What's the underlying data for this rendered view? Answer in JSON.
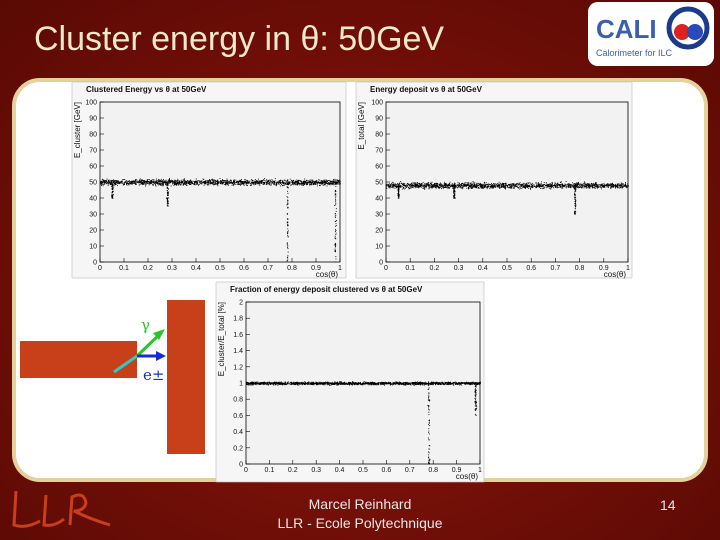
{
  "slide": {
    "title": "Cluster energy in θ: 50GeV",
    "author_line1": "Marcel Reinhard",
    "author_line2": "LLR - Ecole Polytechnique",
    "page_number": "14"
  },
  "logo": {
    "wordmark": "CALICE",
    "tagline": "Calorimeter for ILC",
    "org_logo": "LLR"
  },
  "diagram": {
    "gamma_label": "γ",
    "electron_label": "e±"
  },
  "colors": {
    "background": "#7a1209",
    "title_text": "#f1e9c9",
    "block": "#c8401a",
    "gamma_arrow": "#28c628",
    "electron_arrow": "#1a2ad8",
    "incoming_arrow": "#30c8c8"
  },
  "chart_data": [
    {
      "type": "scatter",
      "title": "Clustered Energy vs θ at 50GeV",
      "ylabel": "E_cluster [GeV]",
      "xlabel": "cos(θ)",
      "xlim": [
        0,
        1
      ],
      "ylim": [
        0,
        100
      ],
      "xticks": [
        "0",
        "0.1",
        "0.2",
        "0.3",
        "0.4",
        "0.5",
        "0.6",
        "0.7",
        "0.8",
        "0.9",
        "1"
      ],
      "yticks": [
        "0",
        "10",
        "20",
        "30",
        "40",
        "50",
        "60",
        "70",
        "80",
        "90",
        "100"
      ],
      "band_center": 50,
      "band_width": 6,
      "dips_x": [
        0.05,
        0.28,
        0.78,
        0.98
      ],
      "dip_depth": [
        40,
        35,
        0,
        0
      ]
    },
    {
      "type": "scatter",
      "title": "Energy deposit vs θ at 50GeV",
      "ylabel": "E_total [GeV]",
      "xlabel": "cos(θ)",
      "xlim": [
        0,
        1
      ],
      "ylim": [
        0,
        100
      ],
      "xticks": [
        "0",
        "0.1",
        "0.2",
        "0.3",
        "0.4",
        "0.5",
        "0.6",
        "0.7",
        "0.8",
        "0.9",
        "1"
      ],
      "yticks": [
        "0",
        "10",
        "20",
        "30",
        "40",
        "50",
        "60",
        "70",
        "80",
        "90",
        "100"
      ],
      "band_center": 48,
      "band_width": 6,
      "dips_x": [
        0.05,
        0.28,
        0.78
      ],
      "dip_depth": [
        40,
        40,
        30
      ]
    },
    {
      "type": "scatter",
      "title": "Fraction of energy deposit clustered vs θ at 50GeV",
      "ylabel": "E_cluster/E_total [%]",
      "xlabel": "cos(θ)",
      "xlim": [
        0,
        1
      ],
      "ylim": [
        0,
        2
      ],
      "xticks": [
        "0",
        "0.1",
        "0.2",
        "0.3",
        "0.4",
        "0.5",
        "0.6",
        "0.7",
        "0.8",
        "0.9",
        "1"
      ],
      "yticks": [
        "0",
        "0.2",
        "0.4",
        "0.6",
        "0.8",
        "1",
        "1.2",
        "1.4",
        "1.6",
        "1.8",
        "2"
      ],
      "band_center": 1.0,
      "band_width": 0.06,
      "dips_x": [
        0.78,
        0.98
      ],
      "dip_depth": [
        0.0,
        0.6
      ]
    }
  ]
}
